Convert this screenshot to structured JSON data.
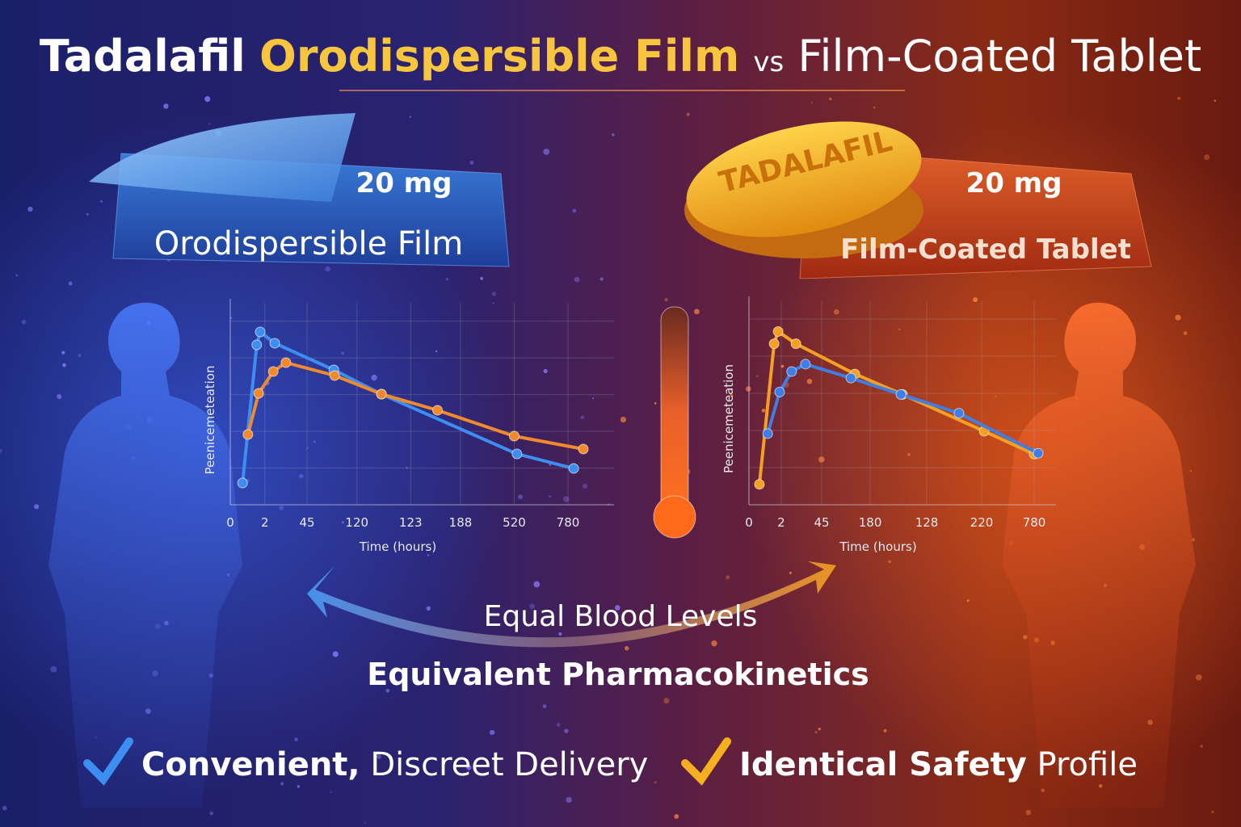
{
  "title": {
    "brand": "Tadalafil",
    "highlight": "Orodispersible Film",
    "vs": "vs",
    "rest": "Film-Coated Tablet"
  },
  "left_product": {
    "dose": "20 mg",
    "label": "Orodispersible Film"
  },
  "right_product": {
    "imprint": "TADALAFIL",
    "dose": "20 mg",
    "label": "Film-Coated Tablet"
  },
  "chart_data": [
    {
      "type": "line",
      "ylabel": "Peenicemeteation",
      "xlabel": "Time (hours)",
      "xlim": [
        0,
        100
      ],
      "ylim": [
        0,
        100
      ],
      "xticks": [
        {
          "value": 0,
          "label": "0"
        },
        {
          "value": 9,
          "label": "2"
        },
        {
          "value": 20,
          "label": "45"
        },
        {
          "value": 33,
          "label": "120"
        },
        {
          "value": 47,
          "label": "123"
        },
        {
          "value": 60,
          "label": "188"
        },
        {
          "value": 74,
          "label": "520"
        },
        {
          "value": 88,
          "label": "780"
        }
      ],
      "series": [
        {
          "color": "#3d8ef2",
          "x": [
            3.2,
            6.9,
            7.8,
            11.6,
            27,
            39.4,
            74.7,
            89.5
          ],
          "values": [
            10.8,
            79.2,
            85.6,
            80,
            66.8,
            54.8,
            25.2,
            18
          ]
        },
        {
          "color": "#f28a2c",
          "x": [
            4.6,
            7.4,
            11.2,
            14.5,
            27.2,
            39.4,
            54,
            74,
            92
          ],
          "values": [
            34.8,
            55.2,
            66,
            70.4,
            64,
            54.8,
            46.8,
            34,
            27.6
          ]
        }
      ]
    },
    {
      "type": "line",
      "ylabel": "Peenicemeteation",
      "xlabel": "Time (hours)",
      "xlim": [
        0,
        100
      ],
      "ylim": [
        0,
        100
      ],
      "xticks": [
        {
          "value": 0,
          "label": "0"
        },
        {
          "value": 10.5,
          "label": "2"
        },
        {
          "value": 23.7,
          "label": "45"
        },
        {
          "value": 39.5,
          "label": "180"
        },
        {
          "value": 57.9,
          "label": "128"
        },
        {
          "value": 75.8,
          "label": "220"
        },
        {
          "value": 92.9,
          "label": "780"
        }
      ],
      "series": [
        {
          "color": "#f5a020",
          "x": [
            3.4,
            8.2,
            9.5,
            15.3,
            34.5,
            50,
            76.6,
            92.9
          ],
          "values": [
            10,
            78.8,
            84.8,
            78.8,
            64,
            54,
            36,
            24.8
          ]
        },
        {
          "color": "#3d7ee8",
          "x": [
            6.1,
            10,
            13.9,
            18.4,
            33.2,
            49.5,
            68.4,
            94.2
          ],
          "values": [
            34.8,
            55.2,
            65.2,
            68.8,
            62,
            54,
            44.8,
            25.2
          ]
        }
      ]
    }
  ],
  "center": {
    "equal": "Equal Blood Levels",
    "equivalent": "Equivalent Pharmacokinetics"
  },
  "benefits": [
    {
      "bold": "Convenient,",
      "rest": "Discreet Delivery"
    },
    {
      "bold": "Identical Safety",
      "rest": "Profile"
    }
  ]
}
